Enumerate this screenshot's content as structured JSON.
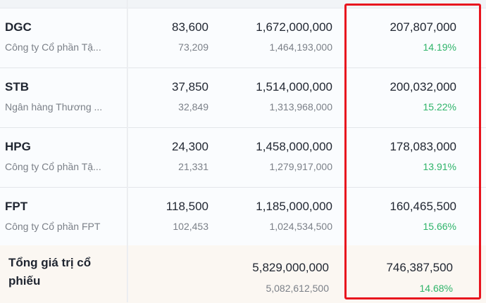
{
  "rows": [
    {
      "ticker": "DGC",
      "name": "Công ty Cổ phần Tậ...",
      "price": "83,600",
      "avg_price": "73,209",
      "value": "1,672,000,000",
      "cost": "1,464,193,000",
      "profit": "207,807,000",
      "profit_pct": "14.19%"
    },
    {
      "ticker": "STB",
      "name": "Ngân hàng Thương ...",
      "price": "37,850",
      "avg_price": "32,849",
      "value": "1,514,000,000",
      "cost": "1,313,968,000",
      "profit": "200,032,000",
      "profit_pct": "15.22%"
    },
    {
      "ticker": "HPG",
      "name": "Công ty Cổ phần Tậ...",
      "price": "24,300",
      "avg_price": "21,331",
      "value": "1,458,000,000",
      "cost": "1,279,917,000",
      "profit": "178,083,000",
      "profit_pct": "13.91%"
    },
    {
      "ticker": "FPT",
      "name": "Công ty Cổ phần FPT",
      "price": "118,500",
      "avg_price": "102,453",
      "value": "1,185,000,000",
      "cost": "1,024,534,500",
      "profit": "160,465,500",
      "profit_pct": "15.66%"
    }
  ],
  "total": {
    "label": "Tổng giá trị cổ phiếu",
    "value": "5,829,000,000",
    "cost": "5,082,612,500",
    "profit": "746,387,500",
    "profit_pct": "14.68%"
  },
  "colors": {
    "highlight": "#e8141e",
    "positive": "#2fb46a"
  }
}
